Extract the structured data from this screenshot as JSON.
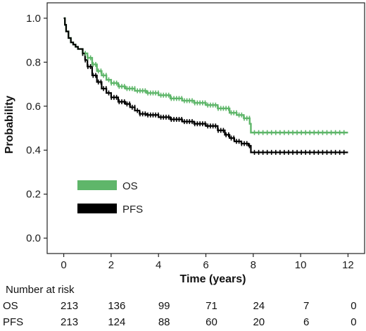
{
  "chart_data": {
    "type": "line",
    "xlabel": "Time (years)",
    "ylabel": "Probability",
    "xlim": [
      -0.7,
      12.7
    ],
    "ylim": [
      -0.07,
      1.07
    ],
    "xticks": [
      "0",
      "2",
      "4",
      "6",
      "8",
      "10",
      "12"
    ],
    "yticks": [
      "0.0",
      "0.2",
      "0.4",
      "0.6",
      "0.8",
      "1.0"
    ],
    "grid": false,
    "legend_position": "bottom-left",
    "series": [
      {
        "name": "OS",
        "color": "#5fb66a",
        "points": [
          [
            0,
            1.0
          ],
          [
            0.05,
            0.97
          ],
          [
            0.1,
            0.94
          ],
          [
            0.2,
            0.91
          ],
          [
            0.3,
            0.89
          ],
          [
            0.4,
            0.88
          ],
          [
            0.5,
            0.87
          ],
          [
            0.6,
            0.86
          ],
          [
            0.8,
            0.84
          ],
          [
            1.0,
            0.82
          ],
          [
            1.2,
            0.79
          ],
          [
            1.4,
            0.76
          ],
          [
            1.6,
            0.74
          ],
          [
            1.8,
            0.72
          ],
          [
            2.0,
            0.705
          ],
          [
            2.3,
            0.69
          ],
          [
            2.6,
            0.68
          ],
          [
            3.0,
            0.67
          ],
          [
            3.5,
            0.66
          ],
          [
            4.0,
            0.65
          ],
          [
            4.5,
            0.635
          ],
          [
            5.0,
            0.625
          ],
          [
            5.5,
            0.615
          ],
          [
            6.0,
            0.605
          ],
          [
            6.5,
            0.59
          ],
          [
            7.0,
            0.57
          ],
          [
            7.3,
            0.56
          ],
          [
            7.6,
            0.545
          ],
          [
            7.85,
            0.52
          ],
          [
            7.9,
            0.48
          ],
          [
            12,
            0.48
          ]
        ]
      },
      {
        "name": "PFS",
        "color": "#000000",
        "points": [
          [
            0,
            1.0
          ],
          [
            0.05,
            0.97
          ],
          [
            0.1,
            0.94
          ],
          [
            0.2,
            0.91
          ],
          [
            0.3,
            0.89
          ],
          [
            0.4,
            0.88
          ],
          [
            0.5,
            0.87
          ],
          [
            0.6,
            0.86
          ],
          [
            0.8,
            0.84
          ],
          [
            0.9,
            0.81
          ],
          [
            1.0,
            0.78
          ],
          [
            1.2,
            0.74
          ],
          [
            1.4,
            0.71
          ],
          [
            1.6,
            0.68
          ],
          [
            1.8,
            0.66
          ],
          [
            2.0,
            0.64
          ],
          [
            2.3,
            0.62
          ],
          [
            2.6,
            0.61
          ],
          [
            2.8,
            0.595
          ],
          [
            3.0,
            0.58
          ],
          [
            3.2,
            0.565
          ],
          [
            3.5,
            0.56
          ],
          [
            4.0,
            0.55
          ],
          [
            4.5,
            0.54
          ],
          [
            5.0,
            0.53
          ],
          [
            5.5,
            0.52
          ],
          [
            6.0,
            0.51
          ],
          [
            6.5,
            0.49
          ],
          [
            6.8,
            0.47
          ],
          [
            7.0,
            0.455
          ],
          [
            7.2,
            0.44
          ],
          [
            7.5,
            0.43
          ],
          [
            7.8,
            0.42
          ],
          [
            7.9,
            0.39
          ],
          [
            12,
            0.39
          ]
        ]
      }
    ]
  },
  "legend": {
    "items": [
      {
        "label": "OS",
        "color": "#5fb66a"
      },
      {
        "label": "PFS",
        "color": "#000000"
      }
    ]
  },
  "risk_table": {
    "title": "Number at risk",
    "times": [
      0,
      2,
      4,
      6,
      8,
      10,
      12
    ],
    "rows": [
      {
        "label": "OS",
        "counts": [
          "213",
          "136",
          "99",
          "71",
          "24",
          "7",
          "0"
        ]
      },
      {
        "label": "PFS",
        "counts": [
          "213",
          "124",
          "88",
          "60",
          "20",
          "6",
          "0"
        ]
      }
    ]
  }
}
